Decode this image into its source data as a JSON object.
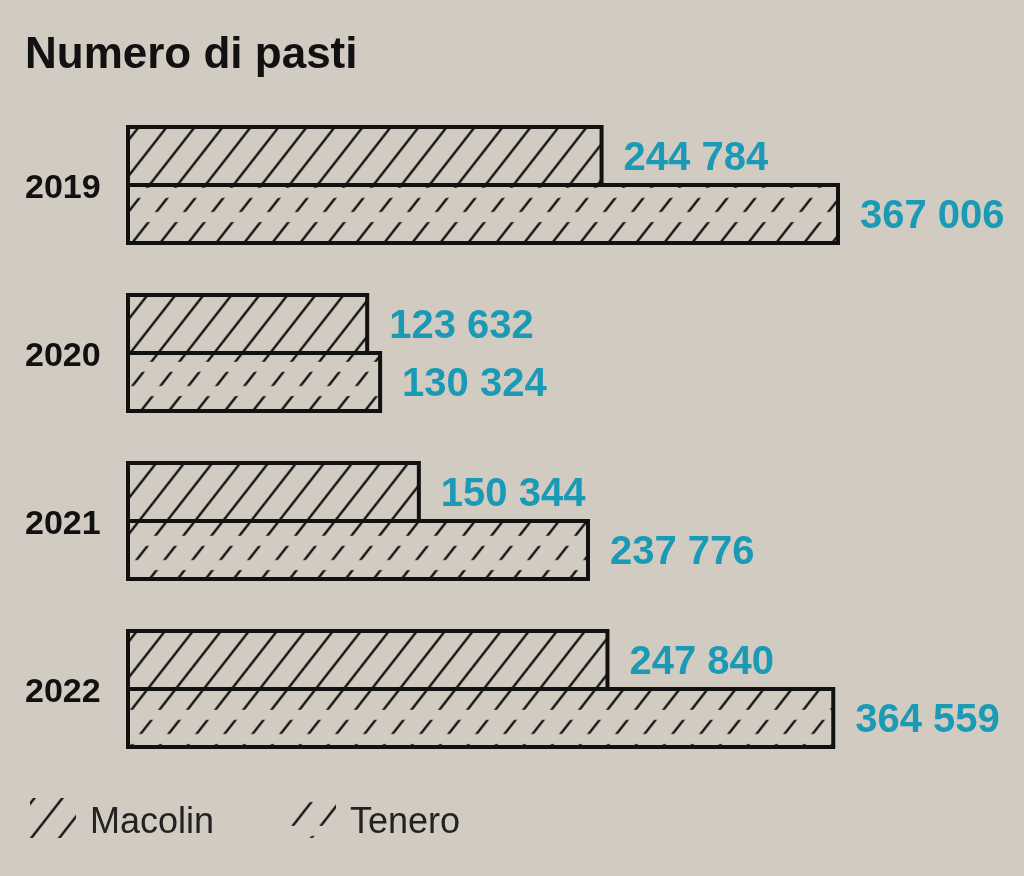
{
  "chart_data": {
    "type": "bar",
    "orientation": "horizontal",
    "title": "Numero di pasti",
    "categories": [
      "2019",
      "2020",
      "2021",
      "2022"
    ],
    "legend": "bottom left",
    "series": [
      {
        "name": "Macolin",
        "color": "#111111",
        "values": [
          244784,
          123632,
          150344,
          247840
        ],
        "value_labels": [
          "244 784",
          "123 632",
          "150 344",
          "247 840"
        ]
      },
      {
        "name": "Tenero",
        "color": "#111111",
        "values": [
          367006,
          130324,
          237776,
          364559
        ],
        "value_labels": [
          "367 006",
          "130 324",
          "237 776",
          "364 559"
        ]
      }
    ]
  }
}
